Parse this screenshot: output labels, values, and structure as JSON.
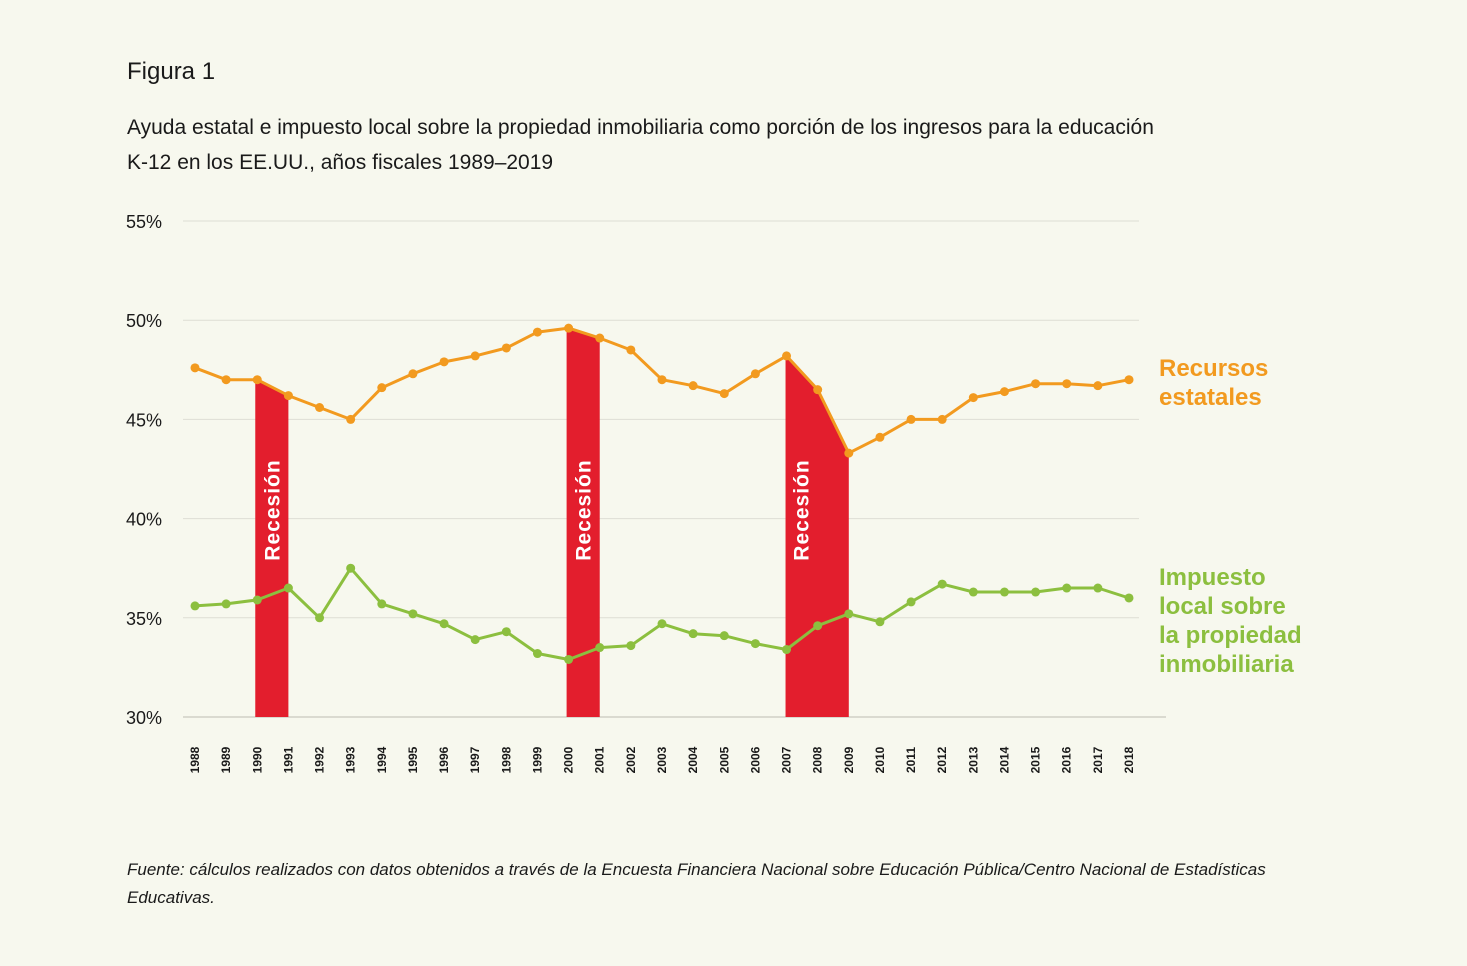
{
  "figure_label": "Figura 1",
  "subtitle": "Ayuda estatal e impuesto local sobre la propiedad inmobiliaria como porción de los ingresos para la educación K-12 en los EE.UU., años fiscales 1989–2019",
  "source": "Fuente: cálculos realizados con datos obtenidos a través de la Encuesta Financiera Nacional sobre Educación Pública/Centro Nacional de Estadísticas Educativas.",
  "chart_data": {
    "type": "line",
    "x": [
      1988,
      1989,
      1990,
      1991,
      1992,
      1993,
      1994,
      1995,
      1996,
      1997,
      1998,
      1999,
      2000,
      2001,
      2002,
      2003,
      2004,
      2005,
      2006,
      2007,
      2008,
      2009,
      2010,
      2011,
      2012,
      2013,
      2014,
      2015,
      2016,
      2017,
      2018
    ],
    "ylim": [
      30,
      55
    ],
    "y_ticks": [
      "30%",
      "35%",
      "40%",
      "45%",
      "50%",
      "55%"
    ],
    "y_tick_values": [
      30,
      35,
      40,
      45,
      50,
      55
    ],
    "grid": true,
    "series": [
      {
        "name_lines": [
          "Recursos",
          "estatales"
        ],
        "color": "#f29a1f",
        "values": [
          47.6,
          47.0,
          47.0,
          46.2,
          45.6,
          45.0,
          46.6,
          47.3,
          47.9,
          48.2,
          48.6,
          49.4,
          49.6,
          49.1,
          48.5,
          47.0,
          46.7,
          46.3,
          47.3,
          48.2,
          46.5,
          43.3,
          44.1,
          45.0,
          45.0,
          46.1,
          46.4,
          46.8,
          46.8,
          46.7,
          47.0
        ]
      },
      {
        "name_lines": [
          "Impuesto",
          "local sobre",
          "la propiedad",
          "inmobiliaria"
        ],
        "color": "#8cbf3f",
        "values": [
          35.6,
          35.7,
          35.9,
          36.5,
          35.0,
          37.5,
          35.7,
          35.2,
          34.7,
          33.9,
          34.3,
          33.2,
          32.9,
          33.5,
          33.6,
          34.7,
          34.2,
          34.1,
          33.7,
          33.4,
          34.6,
          35.2,
          34.8,
          35.8,
          36.7,
          36.3,
          36.3,
          36.3,
          36.5,
          36.5,
          36.0
        ]
      }
    ],
    "recessions": [
      {
        "label": "Recesión",
        "start": 1990,
        "end": 1991
      },
      {
        "label": "Recesión",
        "start": 2000,
        "end": 2001
      },
      {
        "label": "Recesión",
        "start": 2007,
        "end": 2009
      }
    ],
    "recession_color": "#e31e2d"
  }
}
